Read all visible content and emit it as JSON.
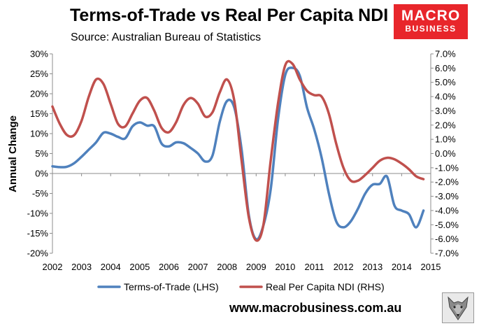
{
  "header": {
    "title": "Terms-of-Trade vs Real Per Capita NDI",
    "subtitle": "Source: Australian Bureau of Statistics"
  },
  "logo": {
    "line1": "MACRO",
    "line2": "BUSINESS",
    "bg_color": "#e8262b"
  },
  "footer": {
    "url": "www.macrobusiness.com.au"
  },
  "chart_data": {
    "type": "line",
    "ylabel": "Annual Change",
    "x_ticks": [
      "2002",
      "2003",
      "2004",
      "2005",
      "2006",
      "2007",
      "2008",
      "2009",
      "2010",
      "2011",
      "2012",
      "2013",
      "2014",
      "2015"
    ],
    "y_left_ticks": [
      "30%",
      "25%",
      "20%",
      "15%",
      "10%",
      "5%",
      "0%",
      "-5%",
      "-10%",
      "-15%",
      "-20%"
    ],
    "y_right_ticks": [
      "7.0%",
      "6.0%",
      "5.0%",
      "4.0%",
      "3.0%",
      "2.0%",
      "1.0%",
      "0.0%",
      "-1.0%",
      "-2.0%",
      "-3.0%",
      "-4.0%",
      "-5.0%",
      "-6.0%",
      "-7.0%"
    ],
    "xlim": [
      2002,
      2015
    ],
    "ylim_left": [
      -20,
      30
    ],
    "ylim_right": [
      -7,
      7
    ],
    "grid": false,
    "legend": "bottom",
    "series": [
      {
        "name": "Terms-of-Trade (LHS)",
        "axis": "left",
        "color": "#4f81bd",
        "x": [
          2002,
          2002.25,
          2002.5,
          2002.75,
          2003,
          2003.25,
          2003.5,
          2003.75,
          2004,
          2004.25,
          2004.5,
          2004.75,
          2005,
          2005.25,
          2005.5,
          2005.75,
          2006,
          2006.25,
          2006.5,
          2006.75,
          2007,
          2007.25,
          2007.5,
          2007.75,
          2008,
          2008.25,
          2008.5,
          2008.75,
          2009,
          2009.25,
          2009.5,
          2009.75,
          2010,
          2010.25,
          2010.5,
          2010.75,
          2011,
          2011.25,
          2011.5,
          2011.75,
          2012,
          2012.25,
          2012.5,
          2012.75,
          2013,
          2013.25,
          2013.5,
          2013.75,
          2014,
          2014.25,
          2014.5,
          2014.75
        ],
        "values": [
          1.8,
          1.6,
          1.7,
          2.6,
          4.2,
          6.0,
          7.8,
          10.2,
          10.0,
          9.2,
          8.8,
          11.8,
          12.8,
          12.0,
          11.8,
          7.5,
          6.8,
          7.8,
          7.6,
          6.4,
          5.0,
          3.0,
          4.5,
          13.0,
          18.2,
          16.5,
          6.0,
          -10.5,
          -16.5,
          -13.0,
          -4.0,
          13.5,
          24.7,
          26.5,
          24.5,
          16.5,
          11.0,
          4.0,
          -5.0,
          -12.0,
          -13.5,
          -12.0,
          -8.8,
          -5.0,
          -2.8,
          -2.6,
          -0.8,
          -8.0,
          -9.3,
          -10.2,
          -13.5,
          -9.3
        ]
      },
      {
        "name": "Real Per Capita NDI (RHS)",
        "axis": "right",
        "color": "#c0504d",
        "x": [
          2002,
          2002.25,
          2002.5,
          2002.75,
          2003,
          2003.25,
          2003.5,
          2003.75,
          2004,
          2004.25,
          2004.5,
          2004.75,
          2005,
          2005.25,
          2005.5,
          2005.75,
          2006,
          2006.25,
          2006.5,
          2006.75,
          2007,
          2007.25,
          2007.5,
          2007.75,
          2008,
          2008.25,
          2008.5,
          2008.75,
          2009,
          2009.25,
          2009.5,
          2009.75,
          2010,
          2010.25,
          2010.5,
          2010.75,
          2011,
          2011.25,
          2011.5,
          2011.75,
          2012,
          2012.25,
          2012.5,
          2012.75,
          2013,
          2013.25,
          2013.5,
          2013.75,
          2014,
          2014.25,
          2014.5,
          2014.75
        ],
        "values": [
          3.3,
          2.1,
          1.3,
          1.3,
          2.3,
          4.0,
          5.2,
          4.9,
          3.5,
          2.1,
          1.9,
          2.8,
          3.7,
          3.9,
          3.0,
          1.8,
          1.5,
          2.2,
          3.4,
          3.9,
          3.5,
          2.6,
          2.9,
          4.3,
          5.2,
          3.7,
          -0.5,
          -4.5,
          -6.1,
          -5.0,
          -0.5,
          3.5,
          6.2,
          6.3,
          5.2,
          4.4,
          4.1,
          4.0,
          2.8,
          0.7,
          -1.0,
          -1.9,
          -1.9,
          -1.5,
          -1.0,
          -0.5,
          -0.3,
          -0.4,
          -0.7,
          -1.1,
          -1.6,
          -1.8
        ]
      }
    ]
  }
}
